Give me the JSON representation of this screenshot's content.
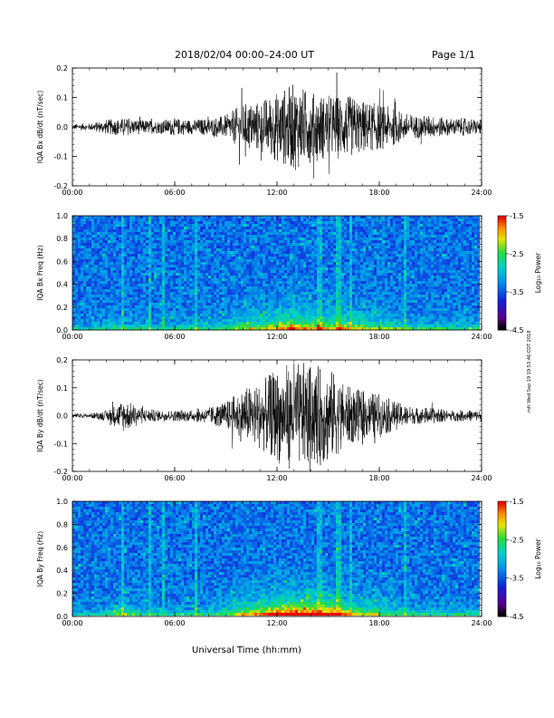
{
  "header": {
    "title": "2018/02/04  00:00–24:00 UT",
    "page": "Page 1/1"
  },
  "xlabel": "Universal Time (hh:mm)",
  "side_note": "mfr Wed Sep 19 19:53:46 CDT 2018",
  "colorbar": {
    "label": "Log₁₀ Power",
    "ticks": [
      "-1.5",
      "-2.5",
      "-3.5",
      "-4.5"
    ]
  },
  "chart_data": [
    {
      "type": "line",
      "id": "bx_waveform",
      "ylabel": "IQA Bx dB/dt (nT/sec)",
      "xlim": [
        0,
        24
      ],
      "ylim": [
        -0.2,
        0.2
      ],
      "x_ticks": [
        "00:00",
        "06:00",
        "12:00",
        "18:00",
        "24:00"
      ],
      "y_ticks": [
        "0.2",
        "0.1",
        "0.0",
        "-0.1",
        "-0.2"
      ],
      "x_hours": [
        0,
        1,
        2,
        3,
        4,
        5,
        6,
        7,
        8,
        9,
        10,
        11,
        12,
        13,
        14,
        15,
        16,
        17,
        18,
        19,
        20,
        21,
        22,
        23,
        24
      ],
      "amplitude": [
        0.01,
        0.012,
        0.025,
        0.03,
        0.025,
        0.022,
        0.03,
        0.025,
        0.03,
        0.04,
        0.08,
        0.09,
        0.12,
        0.15,
        0.12,
        0.11,
        0.11,
        0.09,
        0.08,
        0.06,
        0.04,
        0.04,
        0.03,
        0.03,
        0.025
      ]
    },
    {
      "type": "heatmap",
      "id": "bx_spectrogram",
      "ylabel": "IQA Bx Freq (Hz)",
      "xlim": [
        0,
        24
      ],
      "ylim": [
        0.0,
        1.0
      ],
      "x_ticks": [
        "00:00",
        "06:00",
        "12:00",
        "18:00",
        "24:00"
      ],
      "y_ticks": [
        "1.0",
        "0.8",
        "0.6",
        "0.4",
        "0.2",
        "0.0"
      ],
      "zlim": [
        -4.5,
        -1.5
      ]
    },
    {
      "type": "line",
      "id": "by_waveform",
      "ylabel": "IQA By dB/dt (nT/sec)",
      "xlim": [
        0,
        24
      ],
      "ylim": [
        -0.2,
        0.2
      ],
      "x_ticks": [
        "00:00",
        "06:00",
        "12:00",
        "18:00",
        "24:00"
      ],
      "y_ticks": [
        "0.2",
        "0.1",
        "0.0",
        "-0.1",
        "-0.2"
      ],
      "x_hours": [
        0,
        1,
        2,
        3,
        4,
        5,
        6,
        7,
        8,
        9,
        10,
        11,
        12,
        13,
        14,
        15,
        16,
        17,
        18,
        19,
        20,
        21,
        22,
        23,
        24
      ],
      "amplitude": [
        0.008,
        0.008,
        0.02,
        0.06,
        0.03,
        0.02,
        0.02,
        0.02,
        0.03,
        0.05,
        0.1,
        0.12,
        0.17,
        0.2,
        0.18,
        0.18,
        0.11,
        0.09,
        0.08,
        0.05,
        0.03,
        0.03,
        0.02,
        0.02,
        0.02
      ]
    },
    {
      "type": "heatmap",
      "id": "by_spectrogram",
      "ylabel": "IQA By Freq (Hz)",
      "xlim": [
        0,
        24
      ],
      "ylim": [
        0.0,
        1.0
      ],
      "x_ticks": [
        "00:00",
        "06:00",
        "12:00",
        "18:00",
        "24:00"
      ],
      "y_ticks": [
        "1.0",
        "0.8",
        "0.6",
        "0.4",
        "0.2",
        "0.0"
      ],
      "zlim": [
        -4.5,
        -1.5
      ]
    }
  ]
}
